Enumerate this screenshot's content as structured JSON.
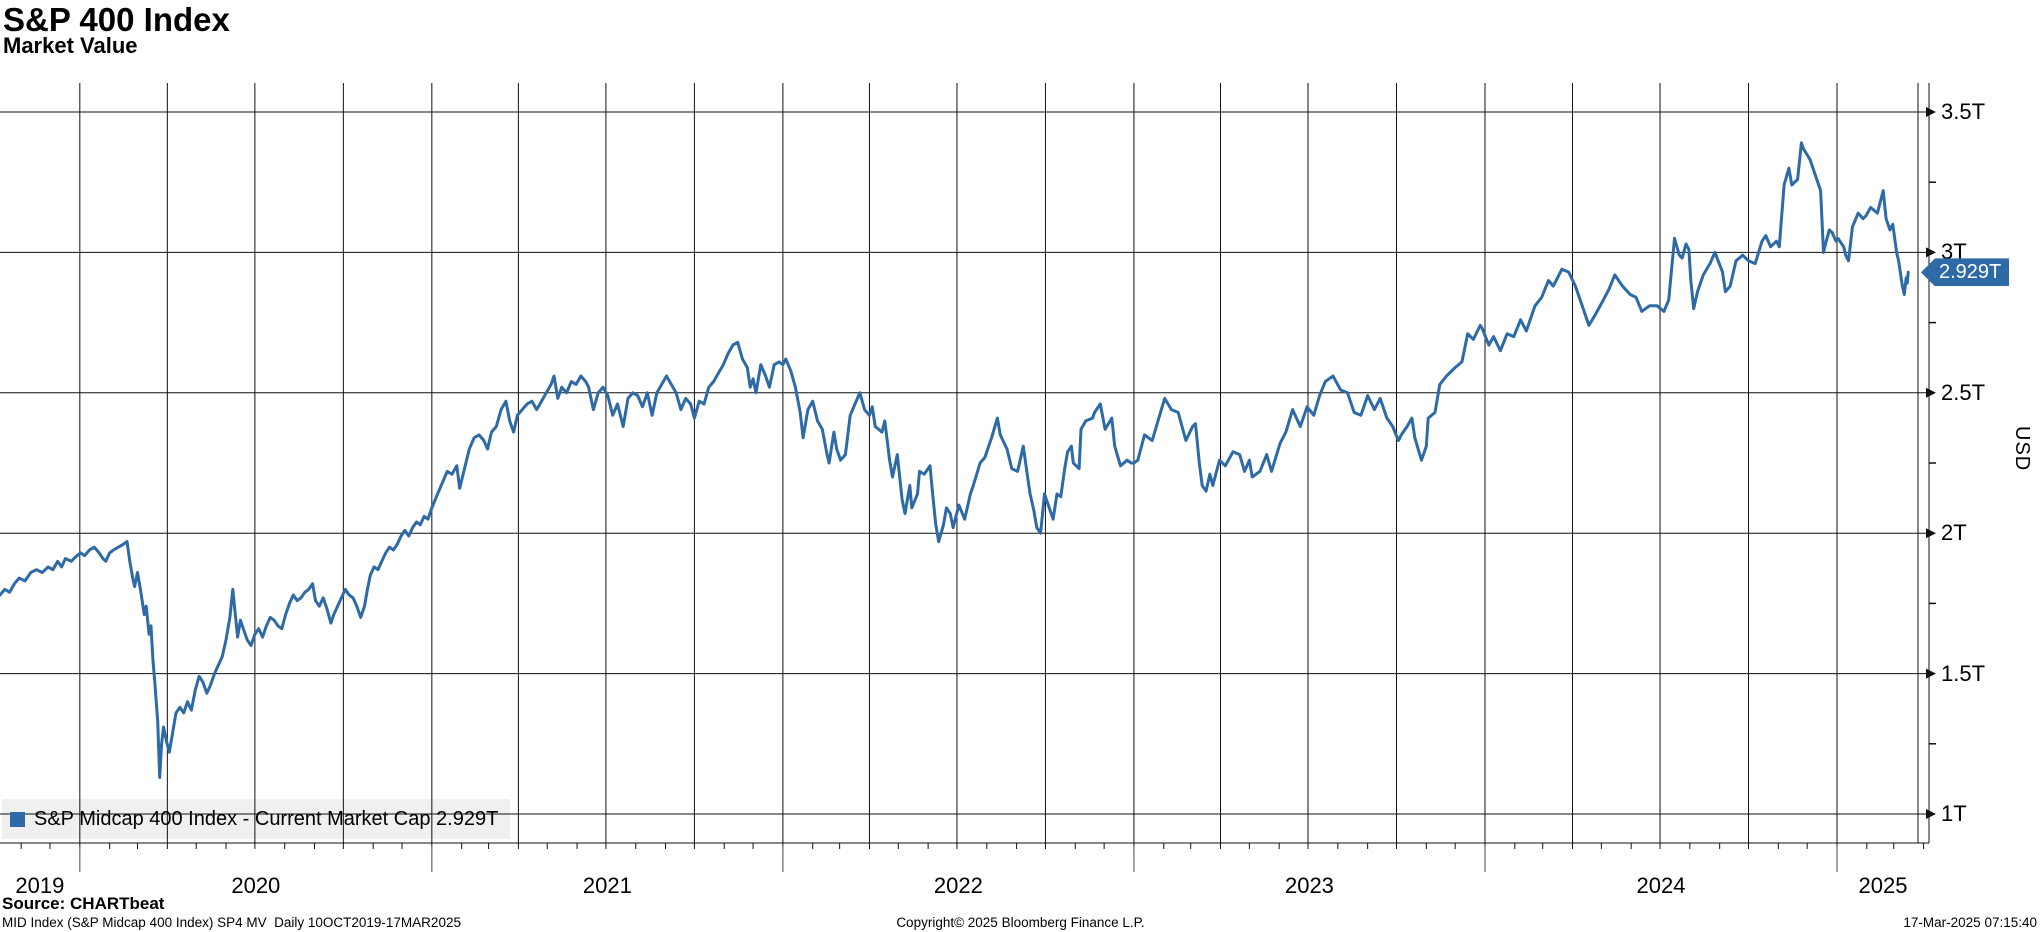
{
  "header": {
    "title": "S&P 400 Index",
    "subtitle": "Market Value"
  },
  "source_line": "Source: CHARTbeat",
  "footer": {
    "left": "MID Index (S&P Midcap 400 Index) SP4 MV  Daily 10OCT2019-17MAR2025",
    "center": "Copyright© 2025 Bloomberg Finance L.P.",
    "right": "17-Mar-2025 07:15:40"
  },
  "legend": {
    "text": "S&P Midcap 400 Index - Current Market Cap 2.929T",
    "swatch_color": "#2d6aa6"
  },
  "value_tag": {
    "label": "2.929T",
    "bg": "#2d6aa6"
  },
  "axis": {
    "y_title": "USD",
    "y_ticks": [
      {
        "label": "1T",
        "value": 1.0
      },
      {
        "label": "1.5T",
        "value": 1.5
      },
      {
        "label": "2T",
        "value": 2.0
      },
      {
        "label": "2.5T",
        "value": 2.5
      },
      {
        "label": "3T",
        "value": 3.0
      },
      {
        "label": "3.5T",
        "value": 3.5
      }
    ],
    "y_minor_ticks": [
      1.25,
      1.75,
      2.25,
      2.75,
      3.25
    ],
    "x_tick_labels": [
      "2019",
      "2020",
      "2021",
      "2022",
      "2023",
      "2024",
      "2025"
    ]
  },
  "chart_data": {
    "type": "line",
    "title": "S&P 400 Index — Market Value",
    "series_name": "S&P Midcap 400 Index",
    "unit": "USD trillions",
    "frequency": "daily",
    "date_start": "2019-10-10",
    "date_end": "2025-03-17",
    "ylim": [
      1.0,
      3.5
    ],
    "grid": true,
    "line_color": "#2d6aa6",
    "last_value": 2.929,
    "last_value_label": "2.929T",
    "points_format": "[days_since_2019-10-10, market_value_T]",
    "points": [
      [
        0,
        1.78
      ],
      [
        5,
        1.8
      ],
      [
        10,
        1.79
      ],
      [
        15,
        1.82
      ],
      [
        20,
        1.84
      ],
      [
        26,
        1.83
      ],
      [
        32,
        1.86
      ],
      [
        38,
        1.87
      ],
      [
        44,
        1.86
      ],
      [
        50,
        1.88
      ],
      [
        55,
        1.87
      ],
      [
        60,
        1.9
      ],
      [
        64,
        1.88
      ],
      [
        68,
        1.91
      ],
      [
        74,
        1.9
      ],
      [
        80,
        1.92
      ],
      [
        84,
        1.93
      ],
      [
        88,
        1.92
      ],
      [
        93,
        1.94
      ],
      [
        98,
        1.95
      ],
      [
        103,
        1.93
      ],
      [
        107,
        1.91
      ],
      [
        110,
        1.9
      ],
      [
        114,
        1.93
      ],
      [
        118,
        1.94
      ],
      [
        123,
        1.95
      ],
      [
        128,
        1.96
      ],
      [
        132,
        1.97
      ],
      [
        135,
        1.9
      ],
      [
        138,
        1.84
      ],
      [
        140,
        1.81
      ],
      [
        143,
        1.86
      ],
      [
        146,
        1.8
      ],
      [
        150,
        1.71
      ],
      [
        152,
        1.74
      ],
      [
        155,
        1.64
      ],
      [
        157,
        1.67
      ],
      [
        159,
        1.55
      ],
      [
        161,
        1.47
      ],
      [
        164,
        1.33
      ],
      [
        166,
        1.13
      ],
      [
        168,
        1.25
      ],
      [
        170,
        1.31
      ],
      [
        173,
        1.26
      ],
      [
        176,
        1.22
      ],
      [
        179,
        1.28
      ],
      [
        183,
        1.36
      ],
      [
        187,
        1.38
      ],
      [
        191,
        1.36
      ],
      [
        195,
        1.4
      ],
      [
        199,
        1.37
      ],
      [
        203,
        1.44
      ],
      [
        207,
        1.49
      ],
      [
        211,
        1.47
      ],
      [
        215,
        1.43
      ],
      [
        219,
        1.46
      ],
      [
        223,
        1.5
      ],
      [
        227,
        1.53
      ],
      [
        231,
        1.56
      ],
      [
        235,
        1.62
      ],
      [
        239,
        1.7
      ],
      [
        242,
        1.8
      ],
      [
        245,
        1.7
      ],
      [
        247,
        1.63
      ],
      [
        250,
        1.69
      ],
      [
        253,
        1.66
      ],
      [
        257,
        1.62
      ],
      [
        261,
        1.6
      ],
      [
        265,
        1.64
      ],
      [
        269,
        1.66
      ],
      [
        273,
        1.63
      ],
      [
        277,
        1.67
      ],
      [
        281,
        1.7
      ],
      [
        285,
        1.69
      ],
      [
        289,
        1.67
      ],
      [
        293,
        1.66
      ],
      [
        297,
        1.71
      ],
      [
        301,
        1.75
      ],
      [
        305,
        1.78
      ],
      [
        309,
        1.76
      ],
      [
        313,
        1.77
      ],
      [
        317,
        1.79
      ],
      [
        321,
        1.8
      ],
      [
        325,
        1.82
      ],
      [
        328,
        1.76
      ],
      [
        332,
        1.74
      ],
      [
        336,
        1.77
      ],
      [
        340,
        1.73
      ],
      [
        344,
        1.68
      ],
      [
        347,
        1.71
      ],
      [
        351,
        1.74
      ],
      [
        355,
        1.77
      ],
      [
        359,
        1.8
      ],
      [
        363,
        1.78
      ],
      [
        367,
        1.77
      ],
      [
        371,
        1.74
      ],
      [
        375,
        1.7
      ],
      [
        379,
        1.74
      ],
      [
        382,
        1.8
      ],
      [
        385,
        1.85
      ],
      [
        389,
        1.88
      ],
      [
        393,
        1.87
      ],
      [
        397,
        1.9
      ],
      [
        401,
        1.93
      ],
      [
        405,
        1.95
      ],
      [
        409,
        1.94
      ],
      [
        413,
        1.96
      ],
      [
        417,
        1.99
      ],
      [
        421,
        2.01
      ],
      [
        425,
        1.99
      ],
      [
        429,
        2.02
      ],
      [
        433,
        2.04
      ],
      [
        437,
        2.03
      ],
      [
        441,
        2.06
      ],
      [
        445,
        2.05
      ],
      [
        449,
        2.09
      ],
      [
        455,
        2.14
      ],
      [
        460,
        2.18
      ],
      [
        465,
        2.22
      ],
      [
        470,
        2.21
      ],
      [
        475,
        2.24
      ],
      [
        478,
        2.16
      ],
      [
        483,
        2.23
      ],
      [
        488,
        2.3
      ],
      [
        493,
        2.34
      ],
      [
        498,
        2.35
      ],
      [
        503,
        2.33
      ],
      [
        507,
        2.3
      ],
      [
        511,
        2.36
      ],
      [
        516,
        2.38
      ],
      [
        521,
        2.44
      ],
      [
        526,
        2.47
      ],
      [
        530,
        2.4
      ],
      [
        534,
        2.36
      ],
      [
        538,
        2.42
      ],
      [
        543,
        2.44
      ],
      [
        548,
        2.46
      ],
      [
        553,
        2.47
      ],
      [
        558,
        2.44
      ],
      [
        563,
        2.47
      ],
      [
        568,
        2.5
      ],
      [
        573,
        2.53
      ],
      [
        576,
        2.56
      ],
      [
        580,
        2.48
      ],
      [
        584,
        2.52
      ],
      [
        589,
        2.5
      ],
      [
        594,
        2.54
      ],
      [
        599,
        2.53
      ],
      [
        604,
        2.56
      ],
      [
        609,
        2.54
      ],
      [
        612,
        2.52
      ],
      [
        617,
        2.44
      ],
      [
        622,
        2.5
      ],
      [
        627,
        2.52
      ],
      [
        632,
        2.49
      ],
      [
        637,
        2.42
      ],
      [
        642,
        2.46
      ],
      [
        648,
        2.38
      ],
      [
        653,
        2.48
      ],
      [
        658,
        2.5
      ],
      [
        663,
        2.49
      ],
      [
        668,
        2.45
      ],
      [
        673,
        2.5
      ],
      [
        678,
        2.42
      ],
      [
        683,
        2.5
      ],
      [
        688,
        2.53
      ],
      [
        693,
        2.56
      ],
      [
        698,
        2.53
      ],
      [
        703,
        2.5
      ],
      [
        708,
        2.44
      ],
      [
        713,
        2.48
      ],
      [
        718,
        2.46
      ],
      [
        722,
        2.41
      ],
      [
        727,
        2.47
      ],
      [
        732,
        2.46
      ],
      [
        737,
        2.52
      ],
      [
        742,
        2.54
      ],
      [
        747,
        2.57
      ],
      [
        752,
        2.6
      ],
      [
        757,
        2.64
      ],
      [
        762,
        2.67
      ],
      [
        767,
        2.68
      ],
      [
        772,
        2.62
      ],
      [
        777,
        2.59
      ],
      [
        780,
        2.52
      ],
      [
        783,
        2.55
      ],
      [
        786,
        2.5
      ],
      [
        791,
        2.6
      ],
      [
        796,
        2.56
      ],
      [
        800,
        2.52
      ],
      [
        805,
        2.6
      ],
      [
        810,
        2.61
      ],
      [
        814,
        2.6
      ],
      [
        817,
        2.62
      ],
      [
        822,
        2.58
      ],
      [
        827,
        2.52
      ],
      [
        832,
        2.43
      ],
      [
        835,
        2.34
      ],
      [
        840,
        2.44
      ],
      [
        845,
        2.47
      ],
      [
        850,
        2.4
      ],
      [
        855,
        2.37
      ],
      [
        860,
        2.28
      ],
      [
        862,
        2.25
      ],
      [
        867,
        2.36
      ],
      [
        870,
        2.3
      ],
      [
        874,
        2.26
      ],
      [
        879,
        2.28
      ],
      [
        884,
        2.42
      ],
      [
        889,
        2.46
      ],
      [
        894,
        2.5
      ],
      [
        899,
        2.44
      ],
      [
        904,
        2.42
      ],
      [
        907,
        2.45
      ],
      [
        910,
        2.38
      ],
      [
        917,
        2.36
      ],
      [
        920,
        2.4
      ],
      [
        925,
        2.26
      ],
      [
        928,
        2.2
      ],
      [
        933,
        2.28
      ],
      [
        938,
        2.12
      ],
      [
        941,
        2.07
      ],
      [
        946,
        2.17
      ],
      [
        948,
        2.09
      ],
      [
        954,
        2.14
      ],
      [
        956,
        2.22
      ],
      [
        961,
        2.21
      ],
      [
        967,
        2.24
      ],
      [
        970,
        2.13
      ],
      [
        973,
        2.03
      ],
      [
        976,
        1.97
      ],
      [
        981,
        2.03
      ],
      [
        984,
        2.09
      ],
      [
        988,
        2.07
      ],
      [
        991,
        2.02
      ],
      [
        997,
        2.1
      ],
      [
        1003,
        2.05
      ],
      [
        1009,
        2.14
      ],
      [
        1012,
        2.17
      ],
      [
        1019,
        2.25
      ],
      [
        1024,
        2.27
      ],
      [
        1031,
        2.34
      ],
      [
        1037,
        2.41
      ],
      [
        1040,
        2.35
      ],
      [
        1047,
        2.3
      ],
      [
        1052,
        2.23
      ],
      [
        1058,
        2.22
      ],
      [
        1064,
        2.31
      ],
      [
        1068,
        2.21
      ],
      [
        1071,
        2.14
      ],
      [
        1075,
        2.08
      ],
      [
        1078,
        2.02
      ],
      [
        1082,
        2.0
      ],
      [
        1086,
        2.14
      ],
      [
        1090,
        2.1
      ],
      [
        1093,
        2.07
      ],
      [
        1095,
        2.05
      ],
      [
        1099,
        2.14
      ],
      [
        1103,
        2.13
      ],
      [
        1107,
        2.23
      ],
      [
        1110,
        2.29
      ],
      [
        1114,
        2.31
      ],
      [
        1116,
        2.25
      ],
      [
        1122,
        2.23
      ],
      [
        1124,
        2.37
      ],
      [
        1129,
        2.4
      ],
      [
        1136,
        2.41
      ],
      [
        1138,
        2.43
      ],
      [
        1144,
        2.46
      ],
      [
        1149,
        2.37
      ],
      [
        1156,
        2.41
      ],
      [
        1159,
        2.31
      ],
      [
        1165,
        2.24
      ],
      [
        1172,
        2.26
      ],
      [
        1176,
        2.25
      ],
      [
        1179,
        2.25
      ],
      [
        1183,
        2.26
      ],
      [
        1190,
        2.35
      ],
      [
        1198,
        2.33
      ],
      [
        1204,
        2.4
      ],
      [
        1211,
        2.48
      ],
      [
        1218,
        2.44
      ],
      [
        1225,
        2.43
      ],
      [
        1233,
        2.33
      ],
      [
        1240,
        2.38
      ],
      [
        1243,
        2.39
      ],
      [
        1247,
        2.25
      ],
      [
        1250,
        2.17
      ],
      [
        1254,
        2.15
      ],
      [
        1258,
        2.21
      ],
      [
        1261,
        2.17
      ],
      [
        1268,
        2.26
      ],
      [
        1274,
        2.24
      ],
      [
        1282,
        2.29
      ],
      [
        1289,
        2.28
      ],
      [
        1294,
        2.22
      ],
      [
        1299,
        2.26
      ],
      [
        1302,
        2.2
      ],
      [
        1310,
        2.22
      ],
      [
        1317,
        2.28
      ],
      [
        1322,
        2.22
      ],
      [
        1331,
        2.32
      ],
      [
        1337,
        2.36
      ],
      [
        1344,
        2.44
      ],
      [
        1352,
        2.38
      ],
      [
        1359,
        2.45
      ],
      [
        1366,
        2.42
      ],
      [
        1372,
        2.49
      ],
      [
        1378,
        2.54
      ],
      [
        1386,
        2.56
      ],
      [
        1394,
        2.51
      ],
      [
        1401,
        2.5
      ],
      [
        1408,
        2.43
      ],
      [
        1415,
        2.42
      ],
      [
        1422,
        2.49
      ],
      [
        1429,
        2.44
      ],
      [
        1435,
        2.48
      ],
      [
        1442,
        2.41
      ],
      [
        1448,
        2.38
      ],
      [
        1454,
        2.33
      ],
      [
        1457,
        2.35
      ],
      [
        1463,
        2.38
      ],
      [
        1468,
        2.41
      ],
      [
        1471,
        2.34
      ],
      [
        1478,
        2.26
      ],
      [
        1483,
        2.31
      ],
      [
        1485,
        2.41
      ],
      [
        1492,
        2.43
      ],
      [
        1497,
        2.53
      ],
      [
        1504,
        2.56
      ],
      [
        1513,
        2.59
      ],
      [
        1520,
        2.61
      ],
      [
        1526,
        2.71
      ],
      [
        1532,
        2.69
      ],
      [
        1539,
        2.74
      ],
      [
        1541,
        2.73
      ],
      [
        1548,
        2.67
      ],
      [
        1553,
        2.7
      ],
      [
        1560,
        2.65
      ],
      [
        1567,
        2.71
      ],
      [
        1574,
        2.7
      ],
      [
        1581,
        2.76
      ],
      [
        1587,
        2.72
      ],
      [
        1596,
        2.81
      ],
      [
        1603,
        2.84
      ],
      [
        1610,
        2.9
      ],
      [
        1615,
        2.88
      ],
      [
        1624,
        2.94
      ],
      [
        1631,
        2.93
      ],
      [
        1638,
        2.88
      ],
      [
        1644,
        2.82
      ],
      [
        1652,
        2.74
      ],
      [
        1659,
        2.78
      ],
      [
        1667,
        2.83
      ],
      [
        1673,
        2.87
      ],
      [
        1679,
        2.92
      ],
      [
        1687,
        2.88
      ],
      [
        1695,
        2.85
      ],
      [
        1701,
        2.84
      ],
      [
        1707,
        2.79
      ],
      [
        1715,
        2.81
      ],
      [
        1723,
        2.81
      ],
      [
        1730,
        2.79
      ],
      [
        1735,
        2.83
      ],
      [
        1741,
        3.05
      ],
      [
        1746,
        2.99
      ],
      [
        1749,
        2.98
      ],
      [
        1753,
        3.03
      ],
      [
        1756,
        3.01
      ],
      [
        1758,
        2.9
      ],
      [
        1761,
        2.8
      ],
      [
        1765,
        2.86
      ],
      [
        1771,
        2.92
      ],
      [
        1778,
        2.96
      ],
      [
        1783,
        3.0
      ],
      [
        1791,
        2.93
      ],
      [
        1794,
        2.86
      ],
      [
        1799,
        2.88
      ],
      [
        1805,
        2.97
      ],
      [
        1812,
        2.99
      ],
      [
        1818,
        2.97
      ],
      [
        1825,
        2.96
      ],
      [
        1832,
        3.04
      ],
      [
        1836,
        3.06
      ],
      [
        1841,
        3.02
      ],
      [
        1847,
        3.04
      ],
      [
        1850,
        3.02
      ],
      [
        1855,
        3.24
      ],
      [
        1860,
        3.3
      ],
      [
        1863,
        3.24
      ],
      [
        1869,
        3.26
      ],
      [
        1873,
        3.39
      ],
      [
        1875,
        3.37
      ],
      [
        1882,
        3.33
      ],
      [
        1887,
        3.28
      ],
      [
        1891,
        3.24
      ],
      [
        1893,
        3.22
      ],
      [
        1896,
        3.0
      ],
      [
        1898,
        3.03
      ],
      [
        1902,
        3.08
      ],
      [
        1905,
        3.07
      ],
      [
        1909,
        3.04
      ],
      [
        1911,
        3.05
      ],
      [
        1917,
        3.02
      ],
      [
        1919,
        2.99
      ],
      [
        1922,
        2.97
      ],
      [
        1926,
        3.09
      ],
      [
        1932,
        3.14
      ],
      [
        1937,
        3.12
      ],
      [
        1940,
        3.13
      ],
      [
        1945,
        3.16
      ],
      [
        1952,
        3.14
      ],
      [
        1958,
        3.22
      ],
      [
        1961,
        3.12
      ],
      [
        1965,
        3.08
      ],
      [
        1968,
        3.1
      ],
      [
        1972,
        3.0
      ],
      [
        1974,
        2.97
      ],
      [
        1978,
        2.88
      ],
      [
        1980,
        2.85
      ],
      [
        1982,
        2.91
      ],
      [
        1983,
        2.89
      ],
      [
        1984,
        2.929
      ]
    ]
  }
}
